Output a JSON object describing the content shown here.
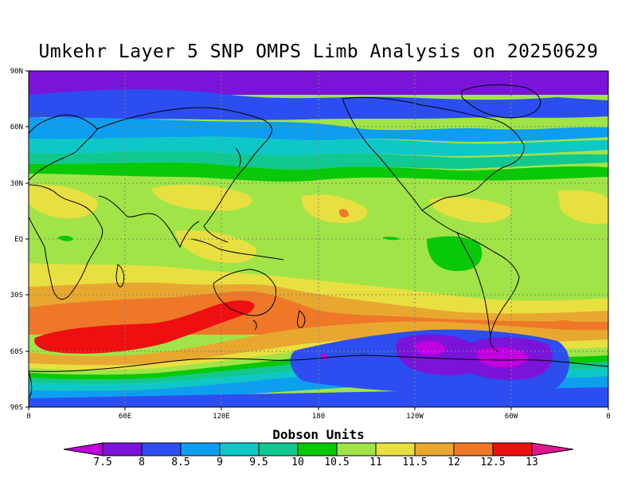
{
  "title": "Umkehr Layer 5 SNP OMPS Limb Analysis on 20250629",
  "colorbar": {
    "label": "Dobson Units",
    "ticks": [
      "7.5",
      "8",
      "8.5",
      "9",
      "9.5",
      "10",
      "10.5",
      "11",
      "11.5",
      "12",
      "12.5",
      "13"
    ],
    "colors": [
      "#c000e0",
      "#7a14d8",
      "#2c4ef0",
      "#0e9ef0",
      "#0ec8c8",
      "#10c890",
      "#08c808",
      "#a0e448",
      "#e8e040",
      "#e8a830",
      "#ee7828",
      "#ee1010",
      "#e01890"
    ]
  },
  "axes": {
    "lat_ticks": [
      "90N",
      "60N",
      "30N",
      "EQ",
      "30S",
      "60S",
      "90S"
    ],
    "lon_ticks": [
      "0",
      "60E",
      "120E",
      "180",
      "120W",
      "60W",
      "0"
    ]
  },
  "map_data": {
    "field": "ozone column, Umkehr layer 5",
    "units": "Dobson Units",
    "projection": "equirectangular",
    "lon_range": [
      0,
      360
    ],
    "lat_range": [
      -90,
      90
    ],
    "features": [
      {
        "name": "arctic minimum",
        "value_range": [
          7.5,
          8
        ]
      },
      {
        "name": "southern mid-latitude maximum (Indian Ocean to Australia)",
        "value_range": [
          12.5,
          13
        ]
      },
      {
        "name": "southern Pacific minimum",
        "value_range": [
          7.5,
          8
        ]
      }
    ]
  }
}
